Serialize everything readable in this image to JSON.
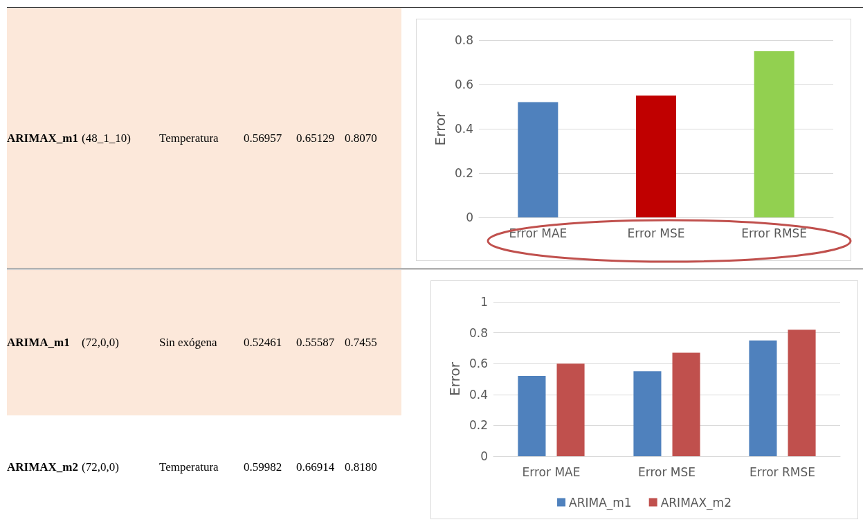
{
  "chart_data": [
    {
      "type": "other",
      "annotations": [
        "ARIMAX_m1",
        "(48_1_10)",
        "Temperatura",
        "0.56957",
        "0.65129",
        "0.8070"
      ]
    },
    {
      "type": "bar",
      "ylabel": "Error",
      "categories": [
        "Error MAE",
        "Error MSE",
        "Error RMSE"
      ],
      "values": [
        0.52,
        0.55,
        0.75
      ],
      "colors": [
        "#4f81bd",
        "#c00000",
        "#92d050"
      ],
      "ylim": [
        0,
        0.8
      ],
      "yticks": [
        0,
        0.2,
        0.4,
        0.6,
        0.8
      ],
      "grid": "y"
    },
    {
      "type": "other",
      "annotations": [
        "ARIMA_m1",
        "(72,0,0)",
        "Sin exógena",
        "0.52461",
        "0.55587",
        "0.7455"
      ]
    },
    {
      "type": "bar",
      "ylabel": "Error",
      "categories": [
        "Error MAE",
        "Error MSE",
        "Error RMSE"
      ],
      "series": [
        {
          "name": "ARIMA_m1",
          "color": "#4f81bd",
          "values": [
            0.52,
            0.55,
            0.75
          ]
        },
        {
          "name": "ARIMAX_m2",
          "color": "#c0504d",
          "values": [
            0.6,
            0.67,
            0.82
          ]
        }
      ],
      "ylim": [
        0,
        1
      ],
      "yticks": [
        0,
        0.2,
        0.4,
        0.6,
        0.8,
        1
      ],
      "grid": "y",
      "legend": "bottom"
    },
    {
      "type": "other",
      "annotations": [
        "ARIMAX_m2",
        "(72,0,0)",
        "Temperatura",
        "0.59982",
        "0.66914",
        "0.8180"
      ]
    }
  ]
}
